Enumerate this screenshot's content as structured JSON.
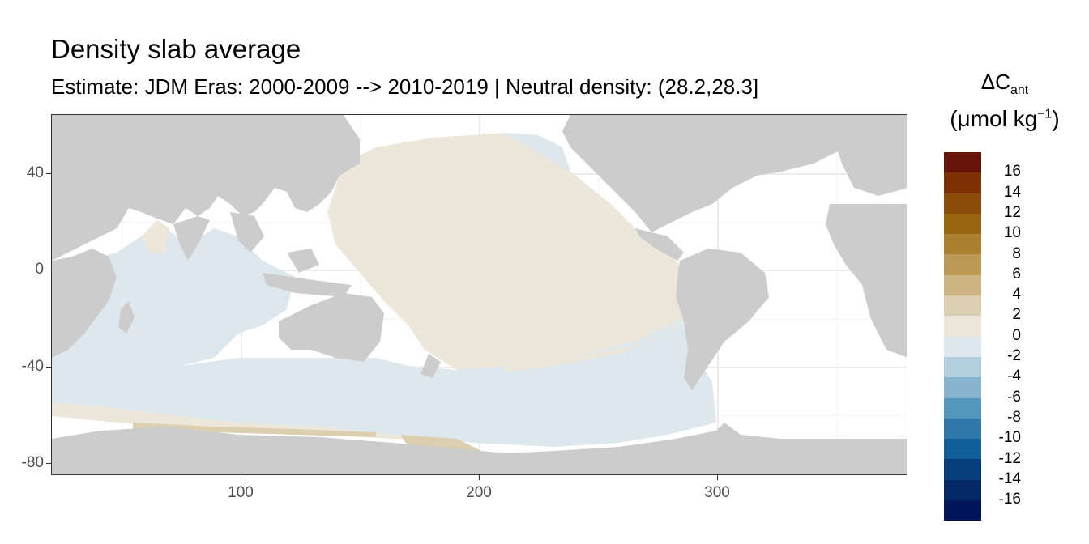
{
  "title": "Density slab average",
  "subtitle": "Estimate: JDM Eras: 2000-2009 --> 2010-2019 | Neutral density: (28.2,28.3]",
  "legend": {
    "title_line1": "ΔC",
    "title_sub": "ant",
    "title_line2": "(μmol kg",
    "title_sup": "−1",
    "title_close": ")",
    "labels": [
      "16",
      "14",
      "12",
      "10",
      "8",
      "6",
      "4",
      "2",
      "0",
      "-2",
      "-4",
      "-6",
      "-8",
      "-10",
      "-12",
      "-14",
      "-16"
    ],
    "colors": [
      "#67140a",
      "#7f3106",
      "#8b4d0b",
      "#9a6511",
      "#aa7f2f",
      "#bb9954",
      "#ccb483",
      "#dccfb0",
      "#ede6da",
      "#dde7ee",
      "#b4cfe0",
      "#86b3cd",
      "#5495bc",
      "#2f79aa",
      "#115e98",
      "#073f7c",
      "#042a66",
      "#02155a"
    ]
  },
  "axes": {
    "x_ticks": [
      "100",
      "200",
      "300"
    ],
    "y_ticks": [
      "40",
      "0",
      "-40",
      "-80"
    ]
  },
  "map": {
    "land_color": "#cccccc",
    "ocean_nodata_color": "#ffffff",
    "grid_color": "#ebebeb"
  },
  "chart_data": {
    "type": "heatmap",
    "title": "Density slab average",
    "subtitle": "Estimate: JDM Eras: 2000-2009 --> 2010-2019 | Neutral density: (28.2,28.3]",
    "xlim": [
      20,
      380
    ],
    "ylim": [
      -85,
      65
    ],
    "x_ticks": [
      100,
      200,
      300
    ],
    "y_ticks": [
      40,
      0,
      -40,
      -80
    ],
    "legend_breaks": [
      16,
      14,
      12,
      10,
      8,
      6,
      4,
      2,
      0,
      -2,
      -4,
      -6,
      -8,
      -10,
      -12,
      -14,
      -16
    ],
    "regions": [
      {
        "region": "North & central Pacific",
        "bin": "0 to 2"
      },
      {
        "region": "Indian Ocean",
        "bin": "-2 to 0"
      },
      {
        "region": "Southern Ocean (Pacific/Indian sector)",
        "bin": "-2 to 0"
      },
      {
        "region": "Antarctic margin, Ross Sea",
        "bin": "2 to 4"
      },
      {
        "region": "Antarctic margin, Indian sector",
        "bin": "0 to 2"
      },
      {
        "region": "Atlantic Ocean",
        "bin": "no data"
      }
    ]
  }
}
